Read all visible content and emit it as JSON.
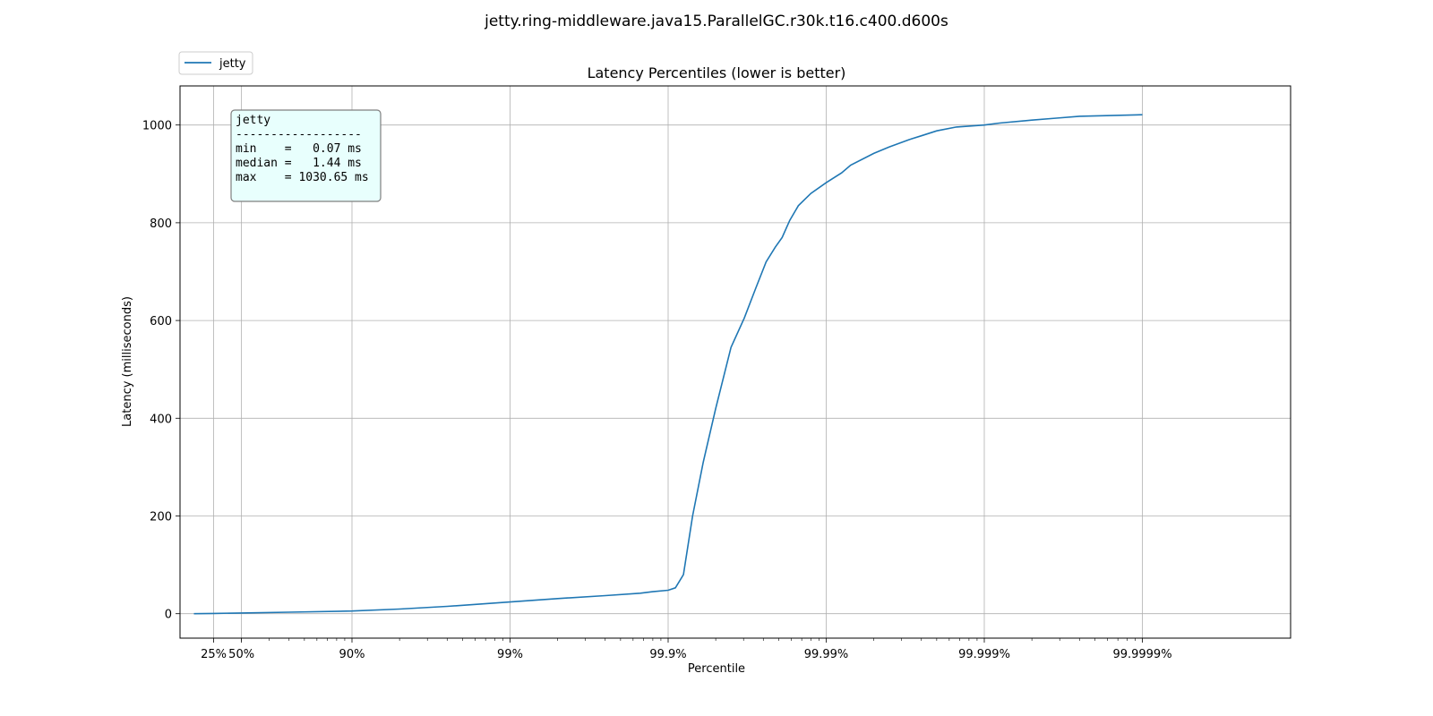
{
  "figure_title": "jetty.ring-middleware.java15.ParallelGC.r30k.t16.c400.d600s",
  "colors": {
    "series": "#1f77b4",
    "stats_box_bg": "#e8fffd",
    "grid": "#b0b0b0"
  },
  "chart_data": {
    "type": "line",
    "title": "Latency Percentiles (lower is better)",
    "xlabel": "Percentile",
    "ylabel": "Latency (milliseconds)",
    "x_scale": "log of 1/(1-p)",
    "x_ticks": [
      {
        "p": 25,
        "label": "25%"
      },
      {
        "p": 50,
        "label": "50%"
      },
      {
        "p": 90,
        "label": "90%"
      },
      {
        "p": 99,
        "label": "99%"
      },
      {
        "p": 99.9,
        "label": "99.9%"
      },
      {
        "p": 99.99,
        "label": "99.99%"
      },
      {
        "p": 99.999,
        "label": "99.999%"
      },
      {
        "p": 99.9999,
        "label": "99.9999%"
      }
    ],
    "y_ticks": [
      0,
      200,
      400,
      600,
      800,
      1000
    ],
    "ylim": [
      -50,
      1080
    ],
    "grid": true,
    "legend": {
      "placement": "top-left, above plot",
      "entries": [
        "jetty"
      ]
    },
    "series": [
      {
        "name": "jetty",
        "points": [
          [
            0,
            0.07
          ],
          [
            25,
            0.6
          ],
          [
            50,
            1.44
          ],
          [
            75,
            3.2
          ],
          [
            90,
            5.5
          ],
          [
            95,
            9.5
          ],
          [
            97.5,
            15
          ],
          [
            99,
            24
          ],
          [
            99.5,
            31
          ],
          [
            99.75,
            37
          ],
          [
            99.85,
            42
          ],
          [
            99.875,
            45
          ],
          [
            99.9,
            48
          ],
          [
            99.91,
            53
          ],
          [
            99.92,
            80
          ],
          [
            99.93,
            200
          ],
          [
            99.94,
            310
          ],
          [
            99.95,
            420
          ],
          [
            99.96,
            545
          ],
          [
            99.967,
            605
          ],
          [
            99.972,
            665
          ],
          [
            99.976,
            720
          ],
          [
            99.979,
            750
          ],
          [
            99.981,
            770
          ],
          [
            99.983,
            805
          ],
          [
            99.985,
            835
          ],
          [
            99.9875,
            860
          ],
          [
            99.99,
            882
          ],
          [
            99.992,
            902
          ],
          [
            99.993,
            918
          ],
          [
            99.995,
            942
          ],
          [
            99.996,
            955
          ],
          [
            99.997,
            970
          ],
          [
            99.9975,
            978
          ],
          [
            99.998,
            988
          ],
          [
            99.9985,
            996
          ],
          [
            99.999,
            1000
          ],
          [
            99.9992,
            1004
          ],
          [
            99.9995,
            1010
          ],
          [
            99.99965,
            1014
          ],
          [
            99.99975,
            1018
          ],
          [
            99.9999,
            1021
          ]
        ]
      }
    ],
    "stats_box": {
      "lines": [
        "jetty",
        "------------------",
        "min    =   0.07 ms",
        "median =   1.44 ms",
        "max    = 1030.65 ms"
      ]
    }
  }
}
